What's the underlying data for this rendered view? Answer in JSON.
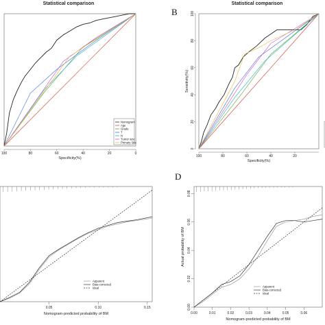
{
  "panels": [
    {
      "id": "A",
      "letter": "",
      "title": "Statistical comparison"
    },
    {
      "id": "B",
      "letter": "B",
      "title": "Statistical comparison"
    },
    {
      "id": "C",
      "letter": "",
      "title": ""
    },
    {
      "id": "D",
      "letter": "D",
      "title": ""
    }
  ],
  "chart_data": [
    {
      "panel": "A",
      "type": "line",
      "title": "Statistical comparison",
      "xlabel": "Specificity(%)",
      "ylabel": "",
      "x_reversed": true,
      "xlim": [
        100,
        0
      ],
      "ylim": [
        0,
        100
      ],
      "xticks": [
        "100",
        "80",
        "60",
        "40",
        "20",
        "0"
      ],
      "yticks": [],
      "legend_position": "bottom-right",
      "series": [
        {
          "name": "Nomogram",
          "color": "#222222",
          "points": [
            [
              100,
              0
            ],
            [
              98,
              10
            ],
            [
              96,
              25
            ],
            [
              93,
              35
            ],
            [
              90,
              42
            ],
            [
              87,
              48
            ],
            [
              84,
              53
            ],
            [
              80,
              58
            ],
            [
              76,
              63
            ],
            [
              72,
              67
            ],
            [
              68,
              71
            ],
            [
              64,
              74
            ],
            [
              60,
              80
            ],
            [
              55,
              84
            ],
            [
              50,
              87
            ],
            [
              45,
              90
            ],
            [
              40,
              92
            ],
            [
              35,
              93
            ],
            [
              30,
              95
            ],
            [
              25,
              96
            ],
            [
              20,
              97
            ],
            [
              15,
              98
            ],
            [
              10,
              99
            ],
            [
              5,
              100
            ],
            [
              0,
              100
            ]
          ]
        },
        {
          "name": "Age",
          "color": "#e8453c",
          "points": [
            [
              100,
              0
            ],
            [
              0,
              100
            ]
          ]
        },
        {
          "name": "Grade",
          "color": "#5aa02c",
          "points": [
            [
              100,
              0
            ],
            [
              70,
              40
            ],
            [
              40,
              75
            ],
            [
              0,
              100
            ]
          ]
        },
        {
          "name": "T",
          "color": "#3b6fd8",
          "points": [
            [
              100,
              0
            ],
            [
              80,
              40
            ],
            [
              60,
              58
            ],
            [
              30,
              80
            ],
            [
              0,
              100
            ]
          ]
        },
        {
          "name": "N",
          "color": "#18b4c8",
          "points": [
            [
              100,
              0
            ],
            [
              70,
              42
            ],
            [
              45,
              68
            ],
            [
              0,
              100
            ]
          ]
        },
        {
          "name": "Tumor size",
          "color": "#d14ad6",
          "points": [
            [
              100,
              0
            ],
            [
              55,
              64
            ],
            [
              30,
              82
            ],
            [
              0,
              100
            ]
          ]
        },
        {
          "name": "Primary Site",
          "color": "#e6b830",
          "points": [
            [
              100,
              0
            ],
            [
              50,
              68
            ],
            [
              0,
              100
            ]
          ]
        }
      ],
      "reference_line": true
    },
    {
      "panel": "B",
      "type": "line",
      "title": "Statistical comparison",
      "xlabel": "Specificity(%)",
      "ylabel": "Sensitivity(%)",
      "x_reversed": true,
      "xlim": [
        100,
        0
      ],
      "ylim": [
        0,
        100
      ],
      "xticks": [
        "100",
        "80",
        "60",
        "40",
        "20"
      ],
      "yticks": [
        "0",
        "20",
        "40",
        "60",
        "80",
        "100"
      ],
      "series": [
        {
          "name": "Nomogram",
          "color": "#222222",
          "points": [
            [
              100,
              0
            ],
            [
              98,
              5
            ],
            [
              96,
              12
            ],
            [
              93,
              18
            ],
            [
              90,
              25
            ],
            [
              86,
              30
            ],
            [
              83,
              35
            ],
            [
              79,
              40
            ],
            [
              75,
              48
            ],
            [
              72,
              53
            ],
            [
              70,
              60
            ],
            [
              67,
              62
            ],
            [
              63,
              68
            ],
            [
              58,
              72
            ],
            [
              52,
              76
            ],
            [
              45,
              82
            ],
            [
              40,
              85
            ],
            [
              35,
              88
            ],
            [
              25,
              88
            ],
            [
              15,
              88
            ],
            [
              10,
              92
            ],
            [
              5,
              98
            ],
            [
              0,
              100
            ]
          ]
        },
        {
          "name": "Age",
          "color": "#e8453c",
          "points": [
            [
              100,
              0
            ],
            [
              0,
              100
            ]
          ]
        },
        {
          "name": "Grade",
          "color": "#5aa02c",
          "points": [
            [
              100,
              0
            ],
            [
              65,
              40
            ],
            [
              40,
              70
            ],
            [
              0,
              100
            ]
          ]
        },
        {
          "name": "T",
          "color": "#3b6fd8",
          "points": [
            [
              100,
              0
            ],
            [
              70,
              45
            ],
            [
              50,
              68
            ],
            [
              0,
              100
            ]
          ]
        },
        {
          "name": "N",
          "color": "#18b4c8",
          "points": [
            [
              100,
              0
            ],
            [
              70,
              38
            ],
            [
              45,
              65
            ],
            [
              0,
              100
            ]
          ]
        },
        {
          "name": "Tumor size",
          "color": "#d14ad6",
          "points": [
            [
              100,
              0
            ],
            [
              60,
              55
            ],
            [
              40,
              78
            ],
            [
              0,
              100
            ]
          ]
        },
        {
          "name": "Primary Site",
          "color": "#e6b830",
          "points": [
            [
              100,
              0
            ],
            [
              70,
              50
            ],
            [
              62,
              70
            ],
            [
              50,
              75
            ],
            [
              40,
              80
            ],
            [
              20,
              88
            ],
            [
              0,
              100
            ]
          ]
        }
      ],
      "reference_line": true
    },
    {
      "panel": "C",
      "type": "line",
      "title": "",
      "xlabel": "Nomogram-predicted probability of BM",
      "ylabel": "",
      "xlim": [
        0,
        0.155
      ],
      "ylim": [
        0,
        0.16
      ],
      "xticks": [
        "0.05",
        "0.10",
        "0.15"
      ],
      "xtick_values": [
        0.05,
        0.1,
        0.15
      ],
      "yticks": [],
      "legend_position": "bottom-right",
      "series": [
        {
          "name": "Apparent",
          "color": "#999999",
          "dash": "",
          "points": [
            [
              0,
              0
            ],
            [
              0.01,
              0.005
            ],
            [
              0.02,
              0.012
            ],
            [
              0.03,
              0.025
            ],
            [
              0.04,
              0.045
            ],
            [
              0.05,
              0.062
            ],
            [
              0.06,
              0.072
            ],
            [
              0.07,
              0.08
            ],
            [
              0.08,
              0.088
            ],
            [
              0.09,
              0.095
            ],
            [
              0.1,
              0.1
            ],
            [
              0.11,
              0.105
            ],
            [
              0.12,
              0.108
            ],
            [
              0.13,
              0.111
            ],
            [
              0.14,
              0.113
            ],
            [
              0.155,
              0.116
            ]
          ]
        },
        {
          "name": "Bias-corrected",
          "color": "#333333",
          "dash": "",
          "points": [
            [
              0,
              0
            ],
            [
              0.01,
              0.006
            ],
            [
              0.02,
              0.013
            ],
            [
              0.03,
              0.027
            ],
            [
              0.04,
              0.047
            ],
            [
              0.05,
              0.064
            ],
            [
              0.06,
              0.073
            ],
            [
              0.07,
              0.081
            ],
            [
              0.08,
              0.089
            ],
            [
              0.09,
              0.096
            ],
            [
              0.1,
              0.102
            ],
            [
              0.11,
              0.106
            ],
            [
              0.12,
              0.11
            ],
            [
              0.13,
              0.112
            ],
            [
              0.14,
              0.114
            ],
            [
              0.155,
              0.118
            ]
          ]
        },
        {
          "name": "Ideal",
          "color": "#333333",
          "dash": "2,1.5",
          "points": [
            [
              0,
              0
            ],
            [
              0.155,
              0.155
            ]
          ]
        }
      ]
    },
    {
      "panel": "D",
      "type": "line",
      "title": "",
      "xlabel": "Nomogram-predicted probability of BM",
      "ylabel": "Actual probability of BM",
      "xlim": [
        0,
        0.07
      ],
      "ylim": [
        0,
        0.085
      ],
      "xticks": [
        "0.00",
        "0.01",
        "0.02",
        "0.03",
        "0.04",
        "0.05",
        "0.06"
      ],
      "xtick_values": [
        0.0,
        0.01,
        0.02,
        0.03,
        0.04,
        0.05,
        0.06
      ],
      "yticks": [
        "0.00",
        "0.02",
        "0.04",
        "0.06",
        "0.08"
      ],
      "ytick_values": [
        0.0,
        0.02,
        0.04,
        0.06,
        0.08
      ],
      "legend_position": "bottom-right",
      "series": [
        {
          "name": "Apparent",
          "color": "#999999",
          "dash": "",
          "points": [
            [
              0,
              0
            ],
            [
              0.005,
              0.004
            ],
            [
              0.01,
              0.009
            ],
            [
              0.015,
              0.014
            ],
            [
              0.02,
              0.016
            ],
            [
              0.025,
              0.02
            ],
            [
              0.03,
              0.027
            ],
            [
              0.035,
              0.036
            ],
            [
              0.04,
              0.047
            ],
            [
              0.045,
              0.057
            ],
            [
              0.05,
              0.06
            ],
            [
              0.055,
              0.061
            ],
            [
              0.06,
              0.062
            ],
            [
              0.065,
              0.064
            ],
            [
              0.07,
              0.065
            ]
          ]
        },
        {
          "name": "Bias-corrected",
          "color": "#333333",
          "dash": "",
          "points": [
            [
              0,
              0
            ],
            [
              0.005,
              0.005
            ],
            [
              0.01,
              0.01
            ],
            [
              0.015,
              0.016
            ],
            [
              0.02,
              0.018
            ],
            [
              0.025,
              0.022
            ],
            [
              0.03,
              0.03
            ],
            [
              0.035,
              0.04
            ],
            [
              0.04,
              0.05
            ],
            [
              0.045,
              0.059
            ],
            [
              0.05,
              0.061
            ],
            [
              0.055,
              0.061
            ],
            [
              0.06,
              0.06
            ],
            [
              0.065,
              0.061
            ],
            [
              0.07,
              0.062
            ]
          ]
        },
        {
          "name": "Ideal",
          "color": "#333333",
          "dash": "2,1.5",
          "points": [
            [
              0,
              0
            ],
            [
              0.07,
              0.07
            ]
          ]
        }
      ]
    }
  ]
}
